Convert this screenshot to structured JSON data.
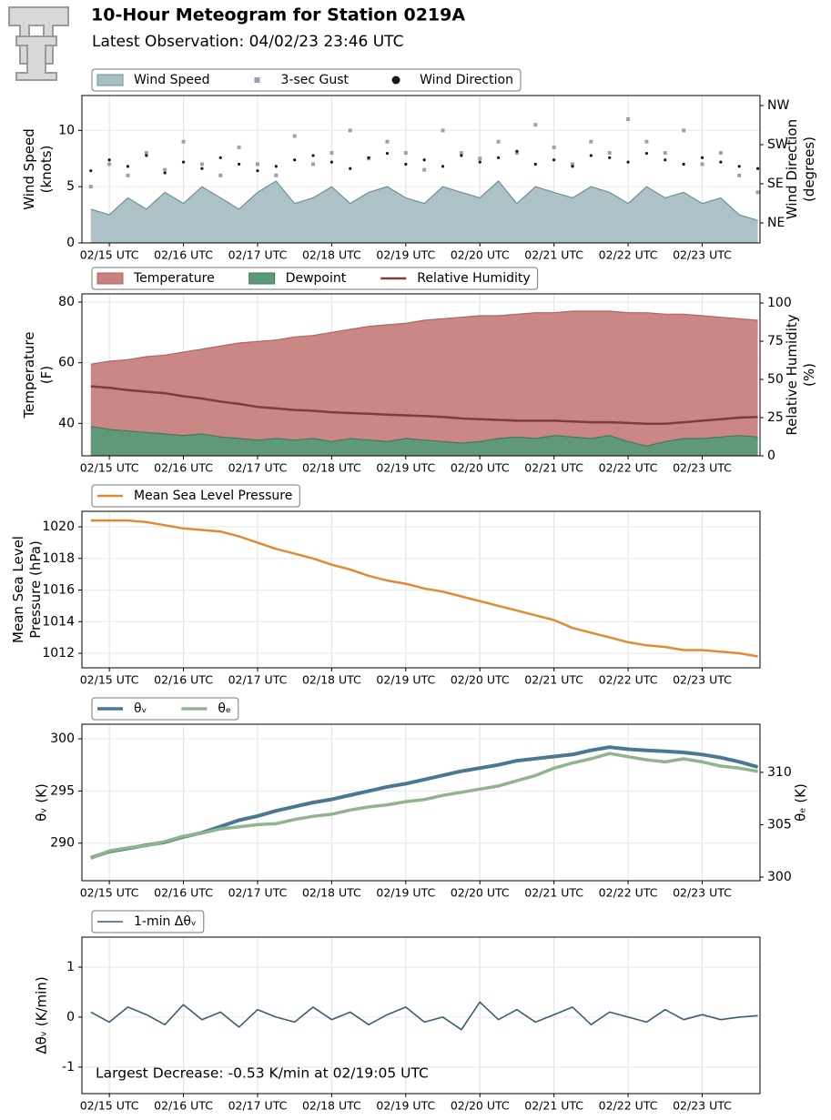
{
  "header": {
    "title": "10-Hour Meteogram for Station 0219A",
    "subtitle": "Latest Observation: 04/02/23 23:46 UTC"
  },
  "chart_data": [
    {
      "type": "area",
      "ylabel": [
        "Wind Speed",
        "(knots)"
      ],
      "y2label": [
        "Wind Direction",
        "(degrees)"
      ],
      "x": [
        -0.25,
        0,
        0.25,
        0.5,
        0.75,
        1,
        1.25,
        1.5,
        1.75,
        2,
        2.25,
        2.5,
        2.75,
        3,
        3.25,
        3.5,
        3.75,
        4,
        4.25,
        4.5,
        4.75,
        5,
        5.25,
        5.5,
        5.75,
        6,
        6.25,
        6.5,
        6.75,
        7,
        7.25,
        7.5,
        7.75,
        8,
        8.25,
        8.5,
        8.75
      ],
      "xlim": [
        -0.37,
        8.78
      ],
      "xticks": [
        {
          "value": 0,
          "label": "02/15 UTC"
        },
        {
          "value": 1,
          "label": "02/16 UTC"
        },
        {
          "value": 2,
          "label": "02/17 UTC"
        },
        {
          "value": 3,
          "label": "02/18 UTC"
        },
        {
          "value": 4,
          "label": "02/19 UTC"
        },
        {
          "value": 5,
          "label": "02/20 UTC"
        },
        {
          "value": 6,
          "label": "02/21 UTC"
        },
        {
          "value": 7,
          "label": "02/22 UTC"
        },
        {
          "value": 8,
          "label": "02/23 UTC"
        }
      ],
      "ylim": [
        0,
        13.1
      ],
      "yticks": [
        0,
        5,
        10
      ],
      "y2lim": [
        -1,
        338
      ],
      "y2ticks": [
        {
          "value": 45,
          "label": "NE"
        },
        {
          "value": 135,
          "label": "SE"
        },
        {
          "value": 225,
          "label": "SW"
        },
        {
          "value": 315,
          "label": "NW"
        }
      ],
      "grid": true,
      "legend": "upper left",
      "series": [
        {
          "name": "Wind Speed",
          "type": "area",
          "color": "#a8bfc4",
          "edge": "#6e9098",
          "values": [
            3,
            2.5,
            4,
            3,
            4.5,
            3.5,
            5,
            4,
            3,
            4.5,
            5.5,
            3.5,
            4,
            5,
            3.5,
            4.5,
            5,
            4,
            3.5,
            5,
            4.5,
            4,
            5.5,
            3.5,
            5,
            4.5,
            4,
            5,
            4.5,
            3.5,
            5,
            4,
            4.5,
            3.5,
            4,
            2.5,
            2
          ]
        },
        {
          "name": "3-sec Gust",
          "type": "scatter",
          "marker": "square",
          "color": "#a09cb8",
          "values": [
            5,
            7,
            6,
            8,
            6.5,
            9,
            7,
            6,
            8.5,
            7,
            6,
            9.5,
            7,
            8,
            10,
            7.5,
            9,
            8,
            6.5,
            10,
            8,
            7.5,
            9,
            8,
            10.5,
            8.5,
            7,
            9,
            8,
            11,
            9,
            8,
            10,
            7,
            8,
            6,
            4.5
          ]
        },
        {
          "name": "Wind Direction",
          "type": "scatter",
          "marker": "circle",
          "color": "#1a1a1a",
          "axis": "y2",
          "values": [
            165,
            190,
            175,
            200,
            160,
            185,
            170,
            195,
            180,
            165,
            175,
            190,
            200,
            185,
            170,
            195,
            205,
            180,
            190,
            175,
            200,
            185,
            195,
            210,
            180,
            190,
            175,
            200,
            195,
            185,
            205,
            190,
            180,
            195,
            185,
            175,
            170
          ]
        }
      ]
    },
    {
      "type": "area",
      "ylabel": [
        "Temperature",
        "(F)"
      ],
      "y2label": [
        "Relative Humidity",
        "(%)"
      ],
      "x": [
        -0.25,
        0,
        0.25,
        0.5,
        0.75,
        1,
        1.25,
        1.5,
        1.75,
        2,
        2.25,
        2.5,
        2.75,
        3,
        3.25,
        3.5,
        3.75,
        4,
        4.25,
        4.5,
        4.75,
        5,
        5.25,
        5.5,
        5.75,
        6,
        6.25,
        6.5,
        6.75,
        7,
        7.25,
        7.5,
        7.75,
        8,
        8.25,
        8.5,
        8.75
      ],
      "xlim": [
        -0.37,
        8.78
      ],
      "xticks": [
        {
          "value": 0,
          "label": "02/15 UTC"
        },
        {
          "value": 1,
          "label": "02/16 UTC"
        },
        {
          "value": 2,
          "label": "02/17 UTC"
        },
        {
          "value": 3,
          "label": "02/18 UTC"
        },
        {
          "value": 4,
          "label": "02/19 UTC"
        },
        {
          "value": 5,
          "label": "02/20 UTC"
        },
        {
          "value": 6,
          "label": "02/21 UTC"
        },
        {
          "value": 7,
          "label": "02/22 UTC"
        },
        {
          "value": 8,
          "label": "02/23 UTC"
        }
      ],
      "ylim": [
        29.3,
        82.7
      ],
      "yticks": [
        40,
        60,
        80
      ],
      "y2lim": [
        0,
        106
      ],
      "y2ticks": [
        0,
        25,
        50,
        75,
        100
      ],
      "grid": true,
      "legend": "upper left",
      "series": [
        {
          "name": "Temperature",
          "type": "area",
          "color": "#c88080",
          "edge": "#b06464",
          "values": [
            59.5,
            60.5,
            61,
            62,
            62.5,
            63.5,
            64.5,
            65.5,
            66.5,
            67,
            67.5,
            68.5,
            69,
            70,
            71,
            72,
            72.5,
            73,
            74,
            74.5,
            75,
            75.5,
            75.5,
            76,
            76.5,
            76.5,
            77,
            77,
            77,
            76.5,
            76.5,
            76,
            76,
            75.5,
            75,
            74.5,
            74
          ]
        },
        {
          "name": "Dewpoint",
          "type": "area",
          "color": "#5a9a78",
          "edge": "#3f7a5a",
          "values": [
            39,
            38,
            37.5,
            37,
            36.5,
            36,
            36.5,
            35.5,
            35,
            34.5,
            35,
            34.5,
            35,
            34,
            35,
            34.5,
            34,
            35,
            34.5,
            34,
            33.5,
            34,
            35,
            35.5,
            35,
            36,
            35.5,
            35,
            36,
            34,
            32.5,
            34,
            35,
            35,
            35.5,
            36,
            35.5
          ]
        },
        {
          "name": "Relative Humidity",
          "type": "line",
          "color": "#7a3e3e",
          "axis": "y2",
          "values": [
            45.5,
            44.5,
            43,
            42,
            41,
            39,
            37.5,
            35.5,
            34,
            32,
            31,
            30,
            29.5,
            28.5,
            28,
            27.5,
            27,
            26.5,
            26,
            25.5,
            24.5,
            24,
            23.5,
            23,
            23,
            23,
            22.5,
            22,
            22,
            21.5,
            21,
            21,
            22,
            23,
            24,
            25,
            25.5
          ]
        }
      ]
    },
    {
      "type": "line",
      "ylabel": [
        "Mean Sea Level",
        "Pressure (hPa)"
      ],
      "x": [
        -0.25,
        0,
        0.25,
        0.5,
        0.75,
        1,
        1.25,
        1.5,
        1.75,
        2,
        2.25,
        2.5,
        2.75,
        3,
        3.25,
        3.5,
        3.75,
        4,
        4.25,
        4.5,
        4.75,
        5,
        5.25,
        5.5,
        5.75,
        6,
        6.25,
        6.5,
        6.75,
        7,
        7.25,
        7.5,
        7.75,
        8,
        8.25,
        8.5,
        8.75
      ],
      "xlim": [
        -0.37,
        8.78
      ],
      "xticks": [
        {
          "value": 0,
          "label": "02/15 UTC"
        },
        {
          "value": 1,
          "label": "02/16 UTC"
        },
        {
          "value": 2,
          "label": "02/17 UTC"
        },
        {
          "value": 3,
          "label": "02/18 UTC"
        },
        {
          "value": 4,
          "label": "02/19 UTC"
        },
        {
          "value": 5,
          "label": "02/20 UTC"
        },
        {
          "value": 6,
          "label": "02/21 UTC"
        },
        {
          "value": 7,
          "label": "02/22 UTC"
        },
        {
          "value": 8,
          "label": "02/23 UTC"
        }
      ],
      "ylim": [
        1011.08,
        1020.98
      ],
      "yticks": [
        1012,
        1014,
        1016,
        1018,
        1020
      ],
      "grid": true,
      "legend": "upper left",
      "series": [
        {
          "name": "Mean Sea Level Pressure",
          "type": "line",
          "color": "#e08a35",
          "values": [
            1020.4,
            1020.4,
            1020.4,
            1020.3,
            1020.1,
            1019.9,
            1019.8,
            1019.7,
            1019.4,
            1019.0,
            1018.6,
            1018.3,
            1018.0,
            1017.6,
            1017.3,
            1016.9,
            1016.6,
            1016.4,
            1016.1,
            1015.9,
            1015.6,
            1015.3,
            1015.0,
            1014.7,
            1014.4,
            1014.1,
            1013.6,
            1013.3,
            1013.0,
            1012.7,
            1012.5,
            1012.4,
            1012.2,
            1012.2,
            1012.1,
            1012.0,
            1011.8
          ]
        }
      ]
    },
    {
      "type": "line",
      "ylabel": [
        "θᵥ (K)"
      ],
      "y2label": [
        "θₑ (K)"
      ],
      "x": [
        -0.25,
        0,
        0.25,
        0.5,
        0.75,
        1,
        1.25,
        1.5,
        1.75,
        2,
        2.25,
        2.5,
        2.75,
        3,
        3.25,
        3.5,
        3.75,
        4,
        4.25,
        4.5,
        4.75,
        5,
        5.25,
        5.5,
        5.75,
        6,
        6.25,
        6.5,
        6.75,
        7,
        7.25,
        7.5,
        7.75,
        8,
        8.25,
        8.5,
        8.75
      ],
      "xlim": [
        -0.37,
        8.78
      ],
      "xticks": [
        {
          "value": 0,
          "label": "02/15 UTC"
        },
        {
          "value": 1,
          "label": "02/16 UTC"
        },
        {
          "value": 2,
          "label": "02/17 UTC"
        },
        {
          "value": 3,
          "label": "02/18 UTC"
        },
        {
          "value": 4,
          "label": "02/19 UTC"
        },
        {
          "value": 5,
          "label": "02/20 UTC"
        },
        {
          "value": 6,
          "label": "02/21 UTC"
        },
        {
          "value": 7,
          "label": "02/22 UTC"
        },
        {
          "value": 8,
          "label": "02/23 UTC"
        }
      ],
      "ylim": [
        286.4,
        301.4
      ],
      "yticks": [
        290,
        295,
        300
      ],
      "y2lim": [
        299.65,
        314.6
      ],
      "y2ticks": [
        300,
        305,
        310
      ],
      "grid": true,
      "legend": "upper left",
      "series": [
        {
          "name": "θᵥ",
          "type": "line",
          "color": "#4a7890",
          "width": 4,
          "values": [
            288.6,
            289.2,
            289.5,
            289.8,
            290.1,
            290.6,
            291.0,
            291.6,
            292.2,
            292.6,
            293.1,
            293.5,
            293.9,
            294.2,
            294.6,
            295.0,
            295.4,
            295.7,
            296.1,
            296.5,
            296.9,
            297.2,
            297.5,
            297.9,
            298.1,
            298.3,
            298.5,
            298.9,
            299.2,
            299.0,
            298.9,
            298.8,
            298.7,
            298.5,
            298.2,
            297.8,
            297.3
          ]
        },
        {
          "name": "θₑ",
          "type": "line",
          "color": "#8fb58d",
          "width": 3.5,
          "axis": "y2",
          "values": [
            301.8,
            302.5,
            302.8,
            303.0,
            303.4,
            303.9,
            304.2,
            304.6,
            304.8,
            305.0,
            305.1,
            305.5,
            305.8,
            306.0,
            306.4,
            306.7,
            306.9,
            307.2,
            307.4,
            307.8,
            308.1,
            308.4,
            308.7,
            309.2,
            309.7,
            310.4,
            310.9,
            311.3,
            311.8,
            311.5,
            311.2,
            311.0,
            311.3,
            311.0,
            310.6,
            310.4,
            310.1
          ]
        }
      ]
    },
    {
      "type": "line",
      "ylabel": [
        "Δθᵥ (K/min)"
      ],
      "annotation": "Largest Decrease: -0.53 K/min at 02/19:05 UTC",
      "annotation_color": "#2e5a70",
      "x": [
        -0.25,
        0,
        0.25,
        0.5,
        0.75,
        1,
        1.25,
        1.5,
        1.75,
        2,
        2.25,
        2.5,
        2.75,
        3,
        3.25,
        3.5,
        3.75,
        4,
        4.25,
        4.5,
        4.75,
        5,
        5.25,
        5.5,
        5.75,
        6,
        6.25,
        6.5,
        6.75,
        7,
        7.25,
        7.5,
        7.75,
        8,
        8.25,
        8.5,
        8.75
      ],
      "xlim": [
        -0.37,
        8.78
      ],
      "xticks": [
        {
          "value": 0,
          "label": "02/15 UTC"
        },
        {
          "value": 1,
          "label": "02/16 UTC"
        },
        {
          "value": 2,
          "label": "02/17 UTC"
        },
        {
          "value": 3,
          "label": "02/18 UTC"
        },
        {
          "value": 4,
          "label": "02/19 UTC"
        },
        {
          "value": 5,
          "label": "02/20 UTC"
        },
        {
          "value": 6,
          "label": "02/21 UTC"
        },
        {
          "value": 7,
          "label": "02/22 UTC"
        },
        {
          "value": 8,
          "label": "02/23 UTC"
        }
      ],
      "ylim": [
        -1.53,
        1.6
      ],
      "yticks": [
        -1,
        0,
        1
      ],
      "grid": true,
      "legend": "upper left",
      "series": [
        {
          "name": "1-min Δθᵥ",
          "type": "line",
          "color": "#3a5f70",
          "width": 1.6,
          "values": [
            0.1,
            -0.1,
            0.2,
            0.05,
            -0.15,
            0.25,
            -0.05,
            0.1,
            -0.2,
            0.15,
            0,
            -0.1,
            0.2,
            -0.05,
            0.1,
            -0.15,
            0.05,
            0.2,
            -0.1,
            0,
            -0.25,
            0.3,
            -0.05,
            0.15,
            -0.1,
            0.05,
            0.2,
            -0.15,
            0.1,
            0,
            -0.1,
            0.15,
            -0.05,
            0.05,
            -0.05,
            0,
            0.03
          ]
        }
      ]
    }
  ]
}
